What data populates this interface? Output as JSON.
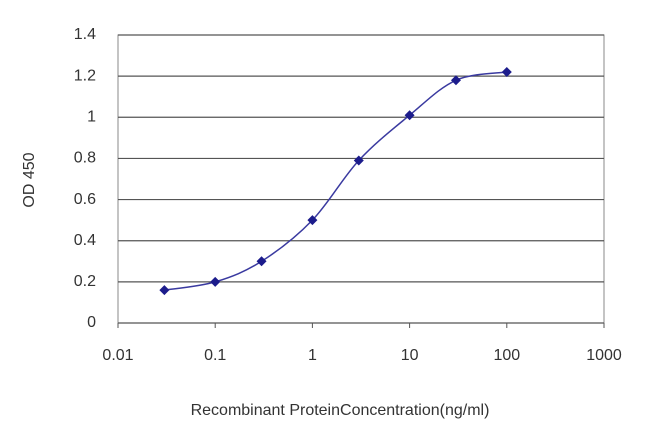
{
  "chart_data": {
    "type": "line",
    "x_label": "Recombinant ProteinConcentration(ng/ml)",
    "y_label": "OD 450",
    "x": [
      0.03,
      0.1,
      0.3,
      1,
      3,
      10,
      30,
      100
    ],
    "values": [
      0.16,
      0.2,
      0.3,
      0.5,
      0.79,
      1.01,
      1.18,
      1.22
    ],
    "color": "#1c1c8c",
    "xscale": "log",
    "xlim": [
      0.01,
      1000
    ],
    "xticks": [
      0.01,
      0.1,
      1,
      10,
      100,
      1000
    ],
    "ylim": [
      0,
      1.4
    ],
    "yticks": [
      0,
      0.2,
      0.4,
      0.6,
      0.8,
      1,
      1.2,
      1.4
    ],
    "grid": true
  }
}
